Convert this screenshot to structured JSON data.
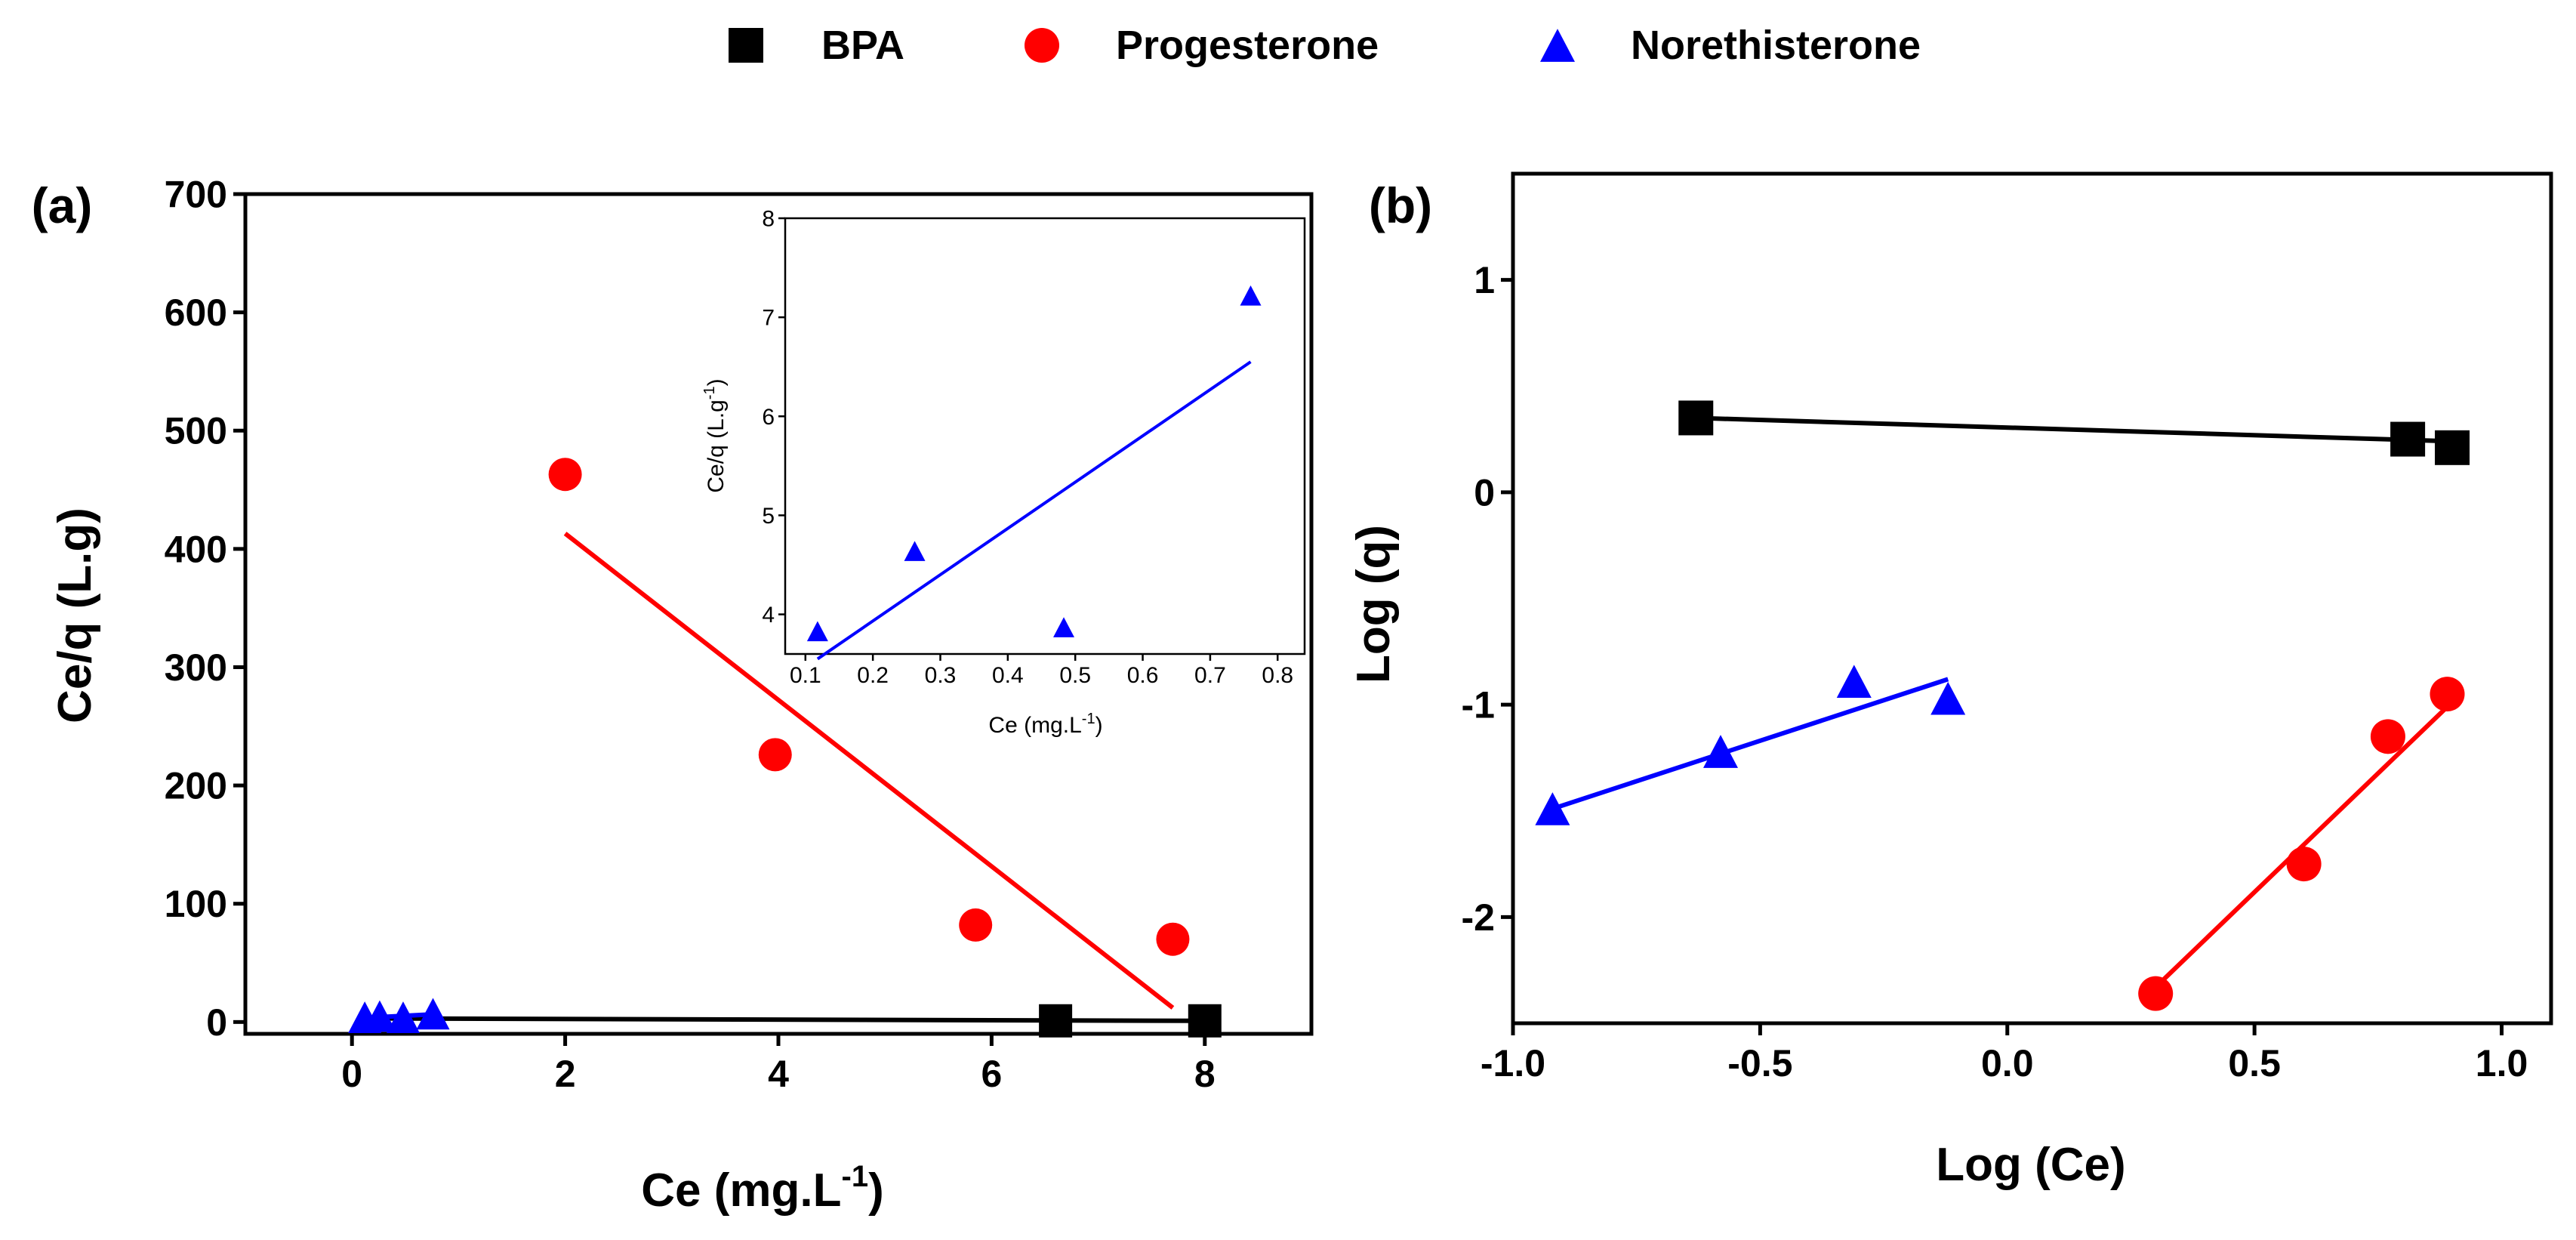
{
  "legend": {
    "entries": [
      {
        "label": "BPA",
        "marker": "square",
        "color": "#000000"
      },
      {
        "label": "Progesterone",
        "marker": "circle",
        "color": "#ff0000"
      },
      {
        "label": "Norethisterone",
        "marker": "triangle",
        "color": "#0000ff"
      }
    ]
  },
  "chart_data": [
    {
      "panel_label": "(a)",
      "type": "scatter",
      "xlabel": "Ce (mg.L",
      "xlabel_sup": "-1",
      "xlabel_close": ")",
      "ylabel": "Ce/q (L.g)",
      "xlim": [
        -1,
        9
      ],
      "ylim": [
        -10,
        700
      ],
      "xticks": [
        0,
        2,
        4,
        6,
        8
      ],
      "yticks": [
        0,
        100,
        200,
        300,
        400,
        500,
        600,
        700
      ],
      "series": [
        {
          "name": "BPA",
          "color": "#000000",
          "marker": "square",
          "points": [
            [
              6.6,
              1
            ],
            [
              8.0,
              1
            ]
          ],
          "fit": [
            [
              0.3,
              3
            ],
            [
              8.0,
              1
            ]
          ]
        },
        {
          "name": "Progesterone",
          "color": "#ff0000",
          "marker": "circle",
          "points": [
            [
              2.0,
              463
            ],
            [
              3.97,
              226
            ],
            [
              5.85,
              82
            ],
            [
              7.7,
              70
            ]
          ],
          "fit": [
            [
              2.0,
              413
            ],
            [
              7.7,
              12
            ]
          ]
        },
        {
          "name": "Norethisterone",
          "color": "#0000ff",
          "marker": "triangle",
          "points": [
            [
              0.12,
              4
            ],
            [
              0.26,
              5
            ],
            [
              0.48,
              4
            ],
            [
              0.76,
              7
            ]
          ],
          "fit": [
            [
              0.12,
              3.5
            ],
            [
              0.76,
              6.5
            ]
          ]
        }
      ],
      "inset": {
        "type": "scatter",
        "xlabel": "Ce (mg.L",
        "xlabel_sup": "-1",
        "xlabel_close": ")",
        "ylabel": "Ce/q (L.g",
        "ylabel_sup": "-1",
        "ylabel_close": ")",
        "xlim": [
          0.07,
          0.84
        ],
        "ylim": [
          3.6,
          8
        ],
        "xticks": [
          0.1,
          0.2,
          0.3,
          0.4,
          0.5,
          0.6,
          0.7,
          0.8
        ],
        "yticks": [
          4,
          5,
          6,
          7,
          8
        ],
        "series": [
          {
            "name": "Norethisterone",
            "color": "#0000ff",
            "marker": "triangle",
            "points": [
              [
                0.118,
                3.83
              ],
              [
                0.262,
                4.64
              ],
              [
                0.483,
                3.87
              ],
              [
                0.76,
                7.22
              ]
            ],
            "fit": [
              [
                0.118,
                3.55
              ],
              [
                0.76,
                6.55
              ]
            ]
          }
        ]
      }
    },
    {
      "panel_label": "(b)",
      "type": "scatter",
      "xlabel": "Log (Ce)",
      "ylabel": "Log (q)",
      "xlim": [
        -1.0,
        1.1
      ],
      "ylim": [
        -2.5,
        1.5
      ],
      "xticks": [
        -1.0,
        -0.5,
        0.0,
        0.5,
        1.0
      ],
      "xtick_labels": [
        "-1.0",
        "-0.5",
        "0.0",
        "0.5",
        "1.0"
      ],
      "yticks": [
        -2,
        -1,
        0,
        1
      ],
      "series": [
        {
          "name": "BPA",
          "color": "#000000",
          "marker": "square",
          "points": [
            [
              -0.63,
              0.35
            ],
            [
              0.81,
              0.25
            ],
            [
              0.9,
              0.21
            ]
          ],
          "fit": [
            [
              -0.63,
              0.35
            ],
            [
              0.9,
              0.24
            ]
          ]
        },
        {
          "name": "Progesterone",
          "color": "#ff0000",
          "marker": "circle",
          "points": [
            [
              0.3,
              -2.36
            ],
            [
              0.6,
              -1.75
            ],
            [
              0.77,
              -1.15
            ],
            [
              0.89,
              -0.95
            ]
          ],
          "fit": [
            [
              0.3,
              -2.33
            ],
            [
              0.89,
              -1.01
            ]
          ]
        },
        {
          "name": "Norethisterone",
          "color": "#0000ff",
          "marker": "triangle",
          "points": [
            [
              -0.92,
              -1.49
            ],
            [
              -0.58,
              -1.22
            ],
            [
              -0.31,
              -0.89
            ],
            [
              -0.12,
              -0.97
            ]
          ],
          "fit": [
            [
              -0.92,
              -1.49
            ],
            [
              -0.12,
              -0.88
            ]
          ]
        }
      ]
    }
  ]
}
